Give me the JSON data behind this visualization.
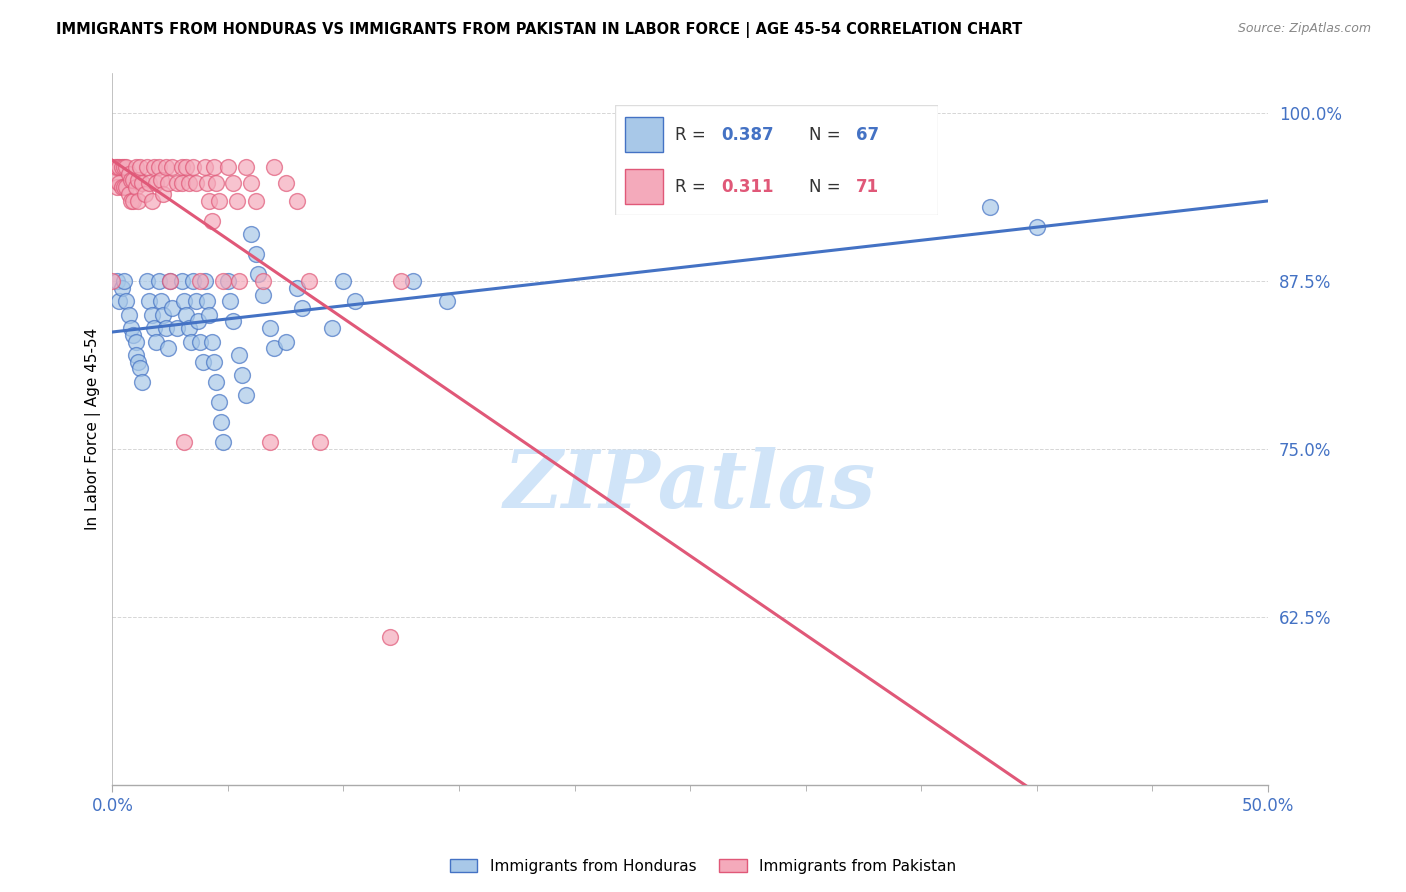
{
  "title": "IMMIGRANTS FROM HONDURAS VS IMMIGRANTS FROM PAKISTAN IN LABOR FORCE | AGE 45-54 CORRELATION CHART",
  "source": "Source: ZipAtlas.com",
  "ylabel": "In Labor Force | Age 45-54",
  "ytick_labels": [
    "100.0%",
    "87.5%",
    "75.0%",
    "62.5%"
  ],
  "ytick_values": [
    1.0,
    0.875,
    0.75,
    0.625
  ],
  "xtick_labels": [
    "0.0%",
    "50.0%"
  ],
  "xtick_values": [
    0.0,
    0.5
  ],
  "xlim": [
    0.0,
    0.5
  ],
  "ylim": [
    0.5,
    1.03
  ],
  "color_honduras": "#a8c8e8",
  "color_pakistan": "#f4aabb",
  "line_color_honduras": "#4472c4",
  "line_color_pakistan": "#e05878",
  "watermark_text": "ZIPatlas",
  "watermark_color": "#d0e4f8",
  "legend_r1_label": "R = 0.387",
  "legend_n1_label": "N = 67",
  "legend_r2_label": "R =  0.311",
  "legend_n2_label": "N = 71",
  "honduras_x": [
    0.002,
    0.003,
    0.004,
    0.005,
    0.006,
    0.007,
    0.008,
    0.009,
    0.01,
    0.01,
    0.011,
    0.012,
    0.013,
    0.015,
    0.016,
    0.017,
    0.018,
    0.019,
    0.02,
    0.021,
    0.022,
    0.023,
    0.024,
    0.025,
    0.026,
    0.028,
    0.03,
    0.031,
    0.032,
    0.033,
    0.034,
    0.035,
    0.036,
    0.037,
    0.038,
    0.039,
    0.04,
    0.041,
    0.042,
    0.043,
    0.044,
    0.045,
    0.046,
    0.047,
    0.048,
    0.05,
    0.051,
    0.052,
    0.055,
    0.056,
    0.058,
    0.06,
    0.062,
    0.063,
    0.065,
    0.068,
    0.07,
    0.075,
    0.08,
    0.082,
    0.095,
    0.1,
    0.105,
    0.13,
    0.145,
    0.38,
    0.4
  ],
  "honduras_y": [
    0.875,
    0.86,
    0.87,
    0.875,
    0.86,
    0.85,
    0.84,
    0.835,
    0.83,
    0.82,
    0.815,
    0.81,
    0.8,
    0.875,
    0.86,
    0.85,
    0.84,
    0.83,
    0.875,
    0.86,
    0.85,
    0.84,
    0.825,
    0.875,
    0.855,
    0.84,
    0.875,
    0.86,
    0.85,
    0.84,
    0.83,
    0.875,
    0.86,
    0.845,
    0.83,
    0.815,
    0.875,
    0.86,
    0.85,
    0.83,
    0.815,
    0.8,
    0.785,
    0.77,
    0.755,
    0.875,
    0.86,
    0.845,
    0.82,
    0.805,
    0.79,
    0.91,
    0.895,
    0.88,
    0.865,
    0.84,
    0.825,
    0.83,
    0.87,
    0.855,
    0.84,
    0.875,
    0.86,
    0.875,
    0.86,
    0.93,
    0.915
  ],
  "pakistan_x": [
    0.0,
    0.001,
    0.001,
    0.002,
    0.002,
    0.003,
    0.003,
    0.004,
    0.004,
    0.005,
    0.005,
    0.006,
    0.006,
    0.007,
    0.007,
    0.008,
    0.008,
    0.009,
    0.009,
    0.01,
    0.01,
    0.011,
    0.011,
    0.012,
    0.013,
    0.014,
    0.015,
    0.016,
    0.017,
    0.018,
    0.019,
    0.02,
    0.021,
    0.022,
    0.023,
    0.024,
    0.025,
    0.026,
    0.028,
    0.03,
    0.03,
    0.031,
    0.032,
    0.033,
    0.035,
    0.036,
    0.038,
    0.04,
    0.041,
    0.042,
    0.043,
    0.044,
    0.045,
    0.046,
    0.048,
    0.05,
    0.052,
    0.054,
    0.055,
    0.058,
    0.06,
    0.062,
    0.065,
    0.068,
    0.07,
    0.075,
    0.08,
    0.085,
    0.09,
    0.12,
    0.125
  ],
  "pakistan_y": [
    0.875,
    0.96,
    0.95,
    0.96,
    0.945,
    0.96,
    0.948,
    0.96,
    0.945,
    0.96,
    0.945,
    0.96,
    0.945,
    0.955,
    0.94,
    0.95,
    0.935,
    0.95,
    0.935,
    0.96,
    0.945,
    0.95,
    0.935,
    0.96,
    0.948,
    0.94,
    0.96,
    0.948,
    0.935,
    0.96,
    0.948,
    0.96,
    0.95,
    0.94,
    0.96,
    0.948,
    0.875,
    0.96,
    0.948,
    0.96,
    0.948,
    0.755,
    0.96,
    0.948,
    0.96,
    0.948,
    0.875,
    0.96,
    0.948,
    0.935,
    0.92,
    0.96,
    0.948,
    0.935,
    0.875,
    0.96,
    0.948,
    0.935,
    0.875,
    0.96,
    0.948,
    0.935,
    0.875,
    0.755,
    0.96,
    0.948,
    0.935,
    0.875,
    0.755,
    0.61,
    0.875
  ]
}
